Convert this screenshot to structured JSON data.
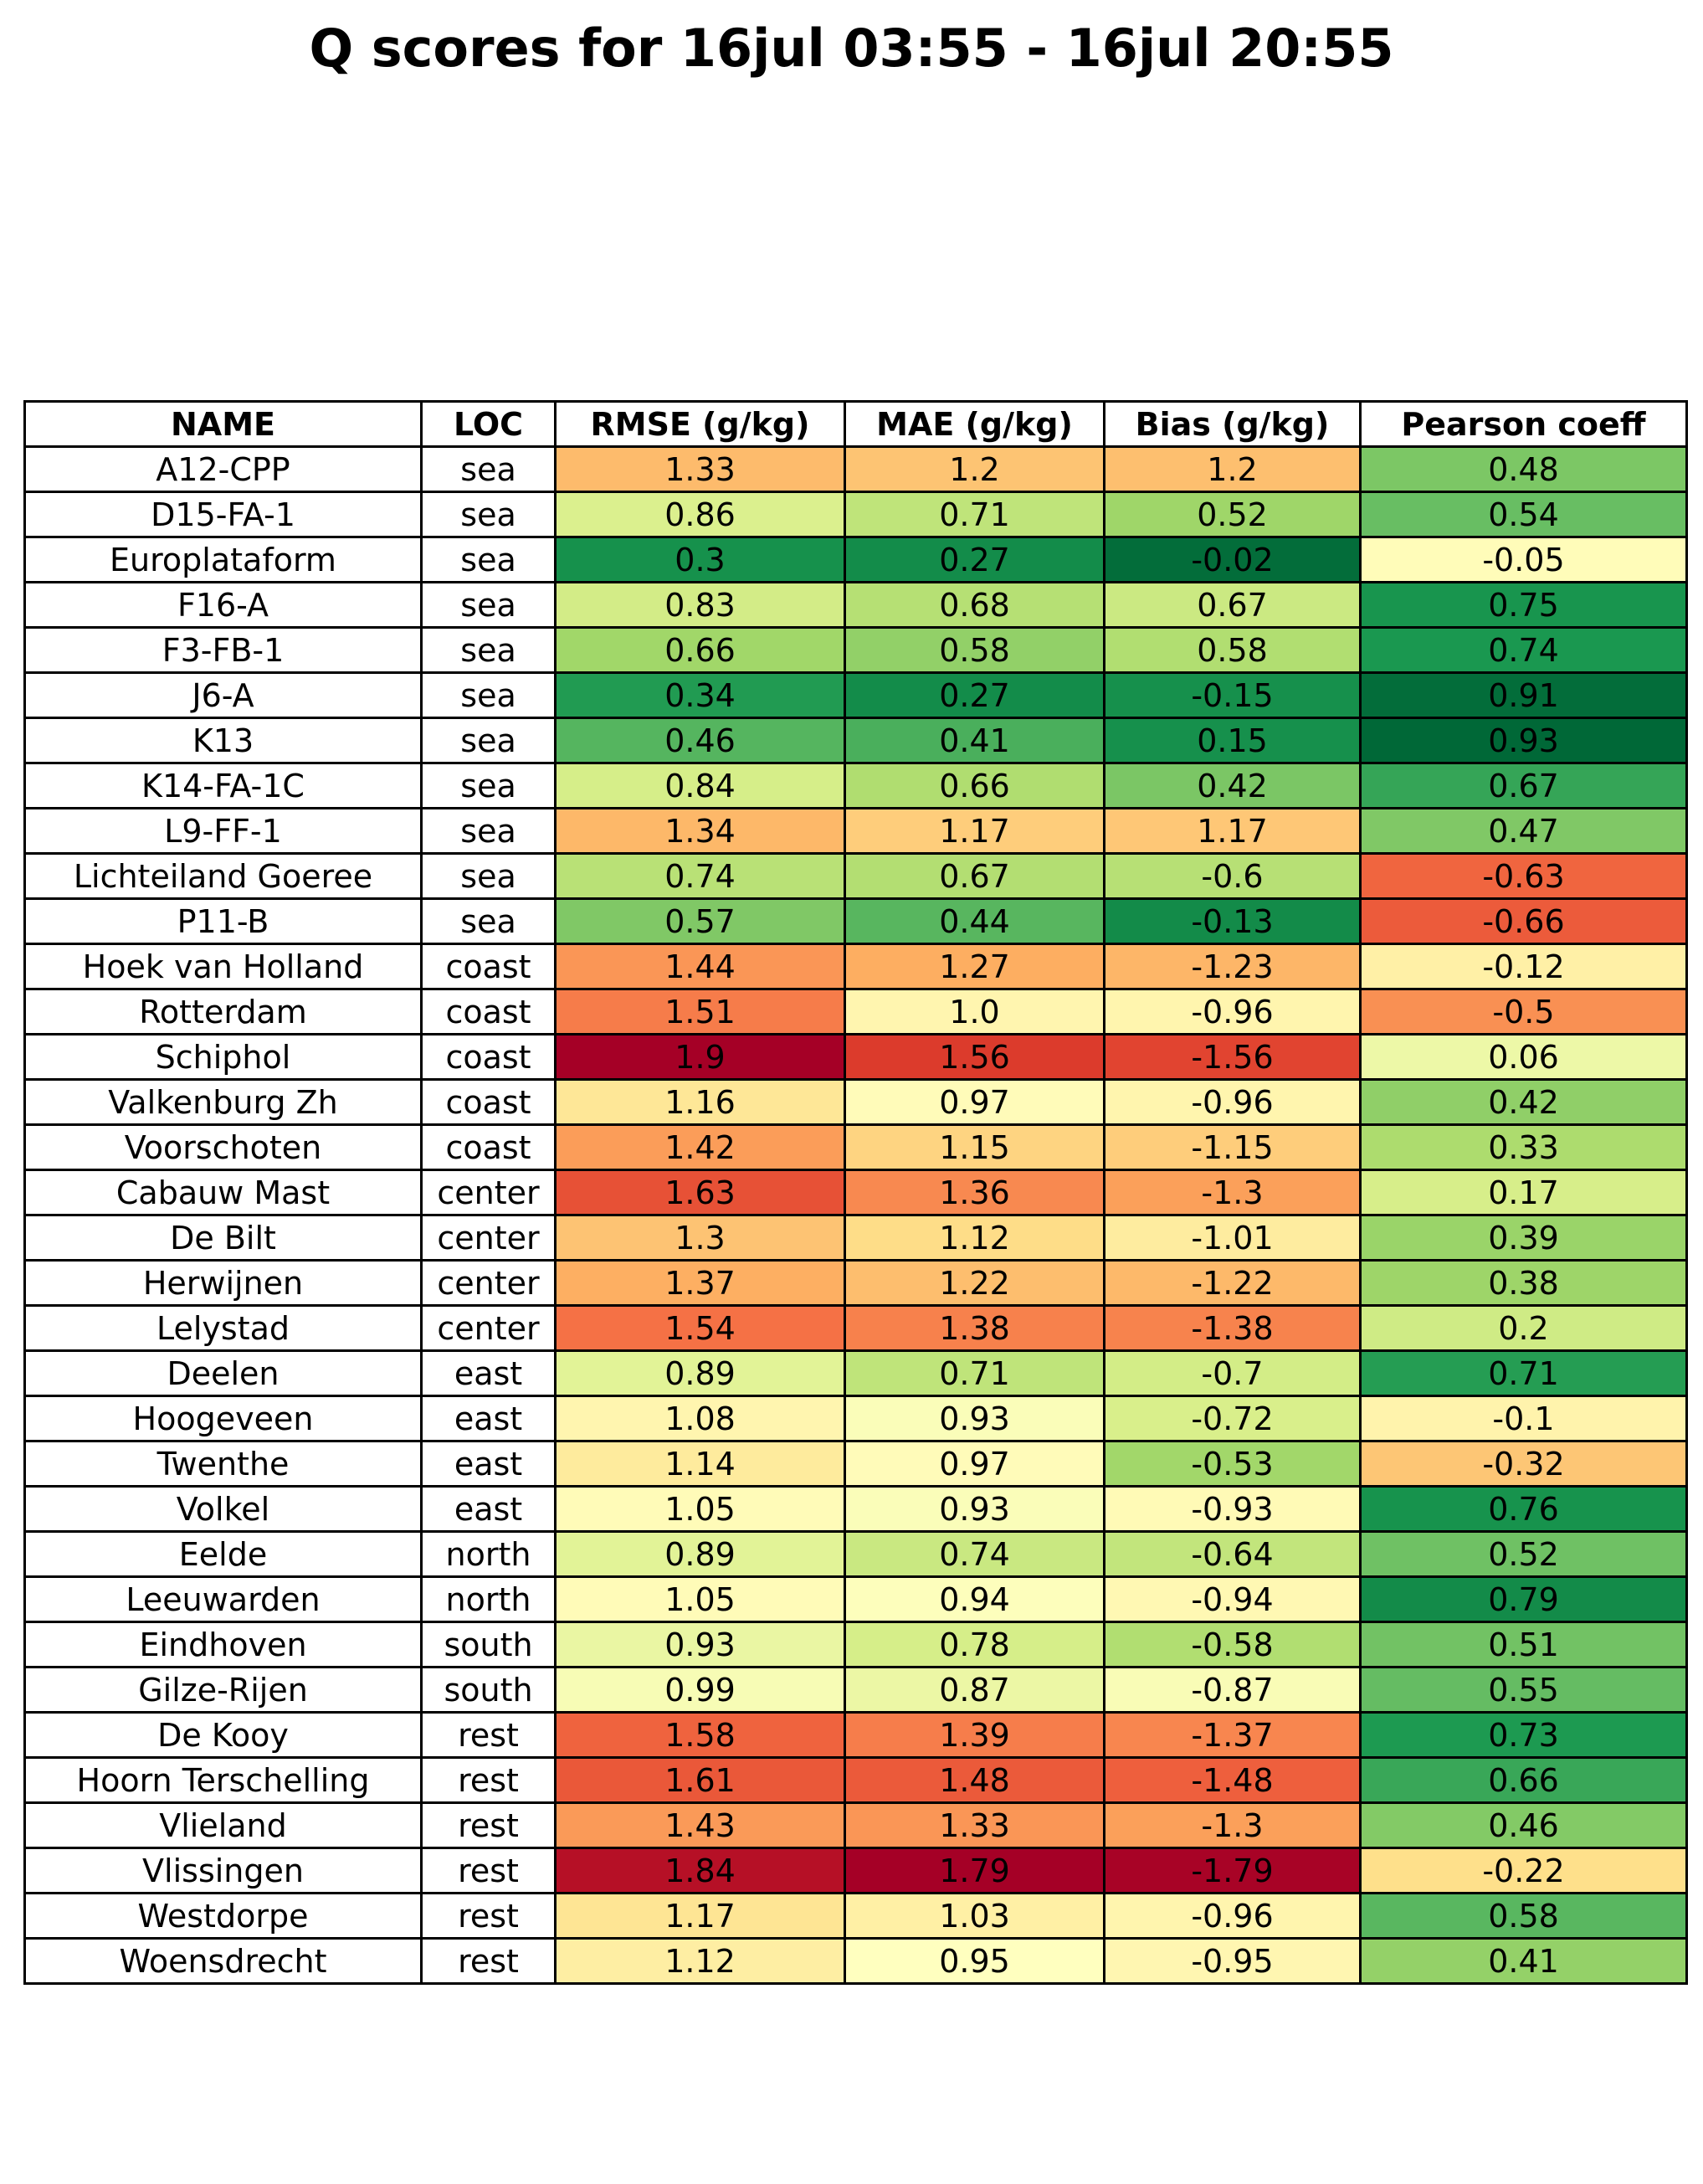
{
  "title": "Q scores for 16jul 03:55 - 16jul 20:55",
  "chart_data": {
    "type": "table",
    "columns": [
      "NAME",
      "LOC",
      "RMSE (g/kg)",
      "MAE (g/kg)",
      "Bias (g/kg)",
      "Pearson coeff"
    ],
    "colormap": "RdYlGn",
    "rows": [
      {
        "name": "A12-CPP",
        "loc": "sea",
        "rmse": "1.33",
        "mae": "1.2",
        "bias": "1.2",
        "pearson": "0.48"
      },
      {
        "name": "D15-FA-1",
        "loc": "sea",
        "rmse": "0.86",
        "mae": "0.71",
        "bias": "0.52",
        "pearson": "0.54"
      },
      {
        "name": "Europlataform",
        "loc": "sea",
        "rmse": "0.3",
        "mae": "0.27",
        "bias": "-0.02",
        "pearson": "-0.05"
      },
      {
        "name": "F16-A",
        "loc": "sea",
        "rmse": "0.83",
        "mae": "0.68",
        "bias": "0.67",
        "pearson": "0.75"
      },
      {
        "name": "F3-FB-1",
        "loc": "sea",
        "rmse": "0.66",
        "mae": "0.58",
        "bias": "0.58",
        "pearson": "0.74"
      },
      {
        "name": "J6-A",
        "loc": "sea",
        "rmse": "0.34",
        "mae": "0.27",
        "bias": "-0.15",
        "pearson": "0.91"
      },
      {
        "name": "K13",
        "loc": "sea",
        "rmse": "0.46",
        "mae": "0.41",
        "bias": "0.15",
        "pearson": "0.93"
      },
      {
        "name": "K14-FA-1C",
        "loc": "sea",
        "rmse": "0.84",
        "mae": "0.66",
        "bias": "0.42",
        "pearson": "0.67"
      },
      {
        "name": "L9-FF-1",
        "loc": "sea",
        "rmse": "1.34",
        "mae": "1.17",
        "bias": "1.17",
        "pearson": "0.47"
      },
      {
        "name": "Lichteiland Goeree",
        "loc": "sea",
        "rmse": "0.74",
        "mae": "0.67",
        "bias": "-0.6",
        "pearson": "-0.63"
      },
      {
        "name": "P11-B",
        "loc": "sea",
        "rmse": "0.57",
        "mae": "0.44",
        "bias": "-0.13",
        "pearson": "-0.66"
      },
      {
        "name": "Hoek van Holland",
        "loc": "coast",
        "rmse": "1.44",
        "mae": "1.27",
        "bias": "-1.23",
        "pearson": "-0.12"
      },
      {
        "name": "Rotterdam",
        "loc": "coast",
        "rmse": "1.51",
        "mae": "1.0",
        "bias": "-0.96",
        "pearson": "-0.5"
      },
      {
        "name": "Schiphol",
        "loc": "coast",
        "rmse": "1.9",
        "mae": "1.56",
        "bias": "-1.56",
        "pearson": "0.06"
      },
      {
        "name": "Valkenburg Zh",
        "loc": "coast",
        "rmse": "1.16",
        "mae": "0.97",
        "bias": "-0.96",
        "pearson": "0.42"
      },
      {
        "name": "Voorschoten",
        "loc": "coast",
        "rmse": "1.42",
        "mae": "1.15",
        "bias": "-1.15",
        "pearson": "0.33"
      },
      {
        "name": "Cabauw Mast",
        "loc": "center",
        "rmse": "1.63",
        "mae": "1.36",
        "bias": "-1.3",
        "pearson": "0.17"
      },
      {
        "name": "De Bilt",
        "loc": "center",
        "rmse": "1.3",
        "mae": "1.12",
        "bias": "-1.01",
        "pearson": "0.39"
      },
      {
        "name": "Herwijnen",
        "loc": "center",
        "rmse": "1.37",
        "mae": "1.22",
        "bias": "-1.22",
        "pearson": "0.38"
      },
      {
        "name": "Lelystad",
        "loc": "center",
        "rmse": "1.54",
        "mae": "1.38",
        "bias": "-1.38",
        "pearson": "0.2"
      },
      {
        "name": "Deelen",
        "loc": "east",
        "rmse": "0.89",
        "mae": "0.71",
        "bias": "-0.7",
        "pearson": "0.71"
      },
      {
        "name": "Hoogeveen",
        "loc": "east",
        "rmse": "1.08",
        "mae": "0.93",
        "bias": "-0.72",
        "pearson": "-0.1"
      },
      {
        "name": "Twenthe",
        "loc": "east",
        "rmse": "1.14",
        "mae": "0.97",
        "bias": "-0.53",
        "pearson": "-0.32"
      },
      {
        "name": "Volkel",
        "loc": "east",
        "rmse": "1.05",
        "mae": "0.93",
        "bias": "-0.93",
        "pearson": "0.76"
      },
      {
        "name": "Eelde",
        "loc": "north",
        "rmse": "0.89",
        "mae": "0.74",
        "bias": "-0.64",
        "pearson": "0.52"
      },
      {
        "name": "Leeuwarden",
        "loc": "north",
        "rmse": "1.05",
        "mae": "0.94",
        "bias": "-0.94",
        "pearson": "0.79"
      },
      {
        "name": "Eindhoven",
        "loc": "south",
        "rmse": "0.93",
        "mae": "0.78",
        "bias": "-0.58",
        "pearson": "0.51"
      },
      {
        "name": "Gilze-Rijen",
        "loc": "south",
        "rmse": "0.99",
        "mae": "0.87",
        "bias": "-0.87",
        "pearson": "0.55"
      },
      {
        "name": "De Kooy",
        "loc": "rest",
        "rmse": "1.58",
        "mae": "1.39",
        "bias": "-1.37",
        "pearson": "0.73"
      },
      {
        "name": "Hoorn Terschelling",
        "loc": "rest",
        "rmse": "1.61",
        "mae": "1.48",
        "bias": "-1.48",
        "pearson": "0.66"
      },
      {
        "name": "Vlieland",
        "loc": "rest",
        "rmse": "1.43",
        "mae": "1.33",
        "bias": "-1.3",
        "pearson": "0.46"
      },
      {
        "name": "Vlissingen",
        "loc": "rest",
        "rmse": "1.84",
        "mae": "1.79",
        "bias": "-1.79",
        "pearson": "-0.22"
      },
      {
        "name": "Westdorpe",
        "loc": "rest",
        "rmse": "1.17",
        "mae": "1.03",
        "bias": "-0.96",
        "pearson": "0.58"
      },
      {
        "name": "Woensdrecht",
        "loc": "rest",
        "rmse": "1.12",
        "mae": "0.95",
        "bias": "-0.95",
        "pearson": "0.41"
      }
    ]
  }
}
